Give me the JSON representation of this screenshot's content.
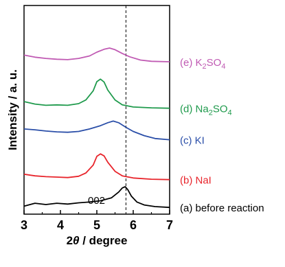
{
  "chart_data": {
    "type": "line",
    "title": "",
    "xlabel_prefix": "2",
    "xlabel_symbol": "θ",
    "xlabel_suffix": " / degree",
    "ylabel": "Intensity / a. u.",
    "xlim": [
      3,
      7
    ],
    "x_ticks": [
      "3",
      "4",
      "5",
      "6",
      "7"
    ],
    "y_ticks_shown": false,
    "reference_line_x": 5.8,
    "peak_annotation": "002",
    "series": [
      {
        "name": "(a) before reaction",
        "label_parts": [
          {
            "t": "(a) before reaction",
            "sub": false
          }
        ],
        "color": "#000000",
        "offset": 0,
        "points": [
          [
            3.0,
            0.6
          ],
          [
            3.3,
            1.3
          ],
          [
            3.6,
            1.0
          ],
          [
            3.9,
            1.3
          ],
          [
            4.2,
            1.1
          ],
          [
            4.5,
            1.4
          ],
          [
            4.8,
            1.6
          ],
          [
            5.1,
            1.9
          ],
          [
            5.4,
            2.6
          ],
          [
            5.6,
            4.0
          ],
          [
            5.7,
            5.0
          ],
          [
            5.78,
            5.3
          ],
          [
            5.85,
            4.6
          ],
          [
            5.95,
            3.0
          ],
          [
            6.1,
            1.6
          ],
          [
            6.3,
            0.9
          ],
          [
            6.6,
            0.5
          ],
          [
            7.0,
            0.3
          ]
        ]
      },
      {
        "name": "(b) NaI",
        "label_parts": [
          {
            "t": "(b) NaI",
            "sub": false
          }
        ],
        "color": "#e8242b",
        "offset": 7,
        "points": [
          [
            3.0,
            1.3
          ],
          [
            3.3,
            0.9
          ],
          [
            3.6,
            0.7
          ],
          [
            3.9,
            0.6
          ],
          [
            4.2,
            0.5
          ],
          [
            4.5,
            0.8
          ],
          [
            4.7,
            1.6
          ],
          [
            4.9,
            3.5
          ],
          [
            5.0,
            5.6
          ],
          [
            5.1,
            6.2
          ],
          [
            5.2,
            5.7
          ],
          [
            5.3,
            4.2
          ],
          [
            5.5,
            2.0
          ],
          [
            5.7,
            0.9
          ],
          [
            6.0,
            0.4
          ],
          [
            6.5,
            0.1
          ],
          [
            7.0,
            0.0
          ]
        ]
      },
      {
        "name": "(c) KI",
        "label_parts": [
          {
            "t": "(c) KI",
            "sub": false
          }
        ],
        "color": "#2a4ea8",
        "offset": 16,
        "points": [
          [
            3.0,
            3.2
          ],
          [
            3.3,
            3.0
          ],
          [
            3.6,
            2.7
          ],
          [
            3.9,
            2.5
          ],
          [
            4.2,
            2.4
          ],
          [
            4.5,
            2.6
          ],
          [
            4.8,
            3.2
          ],
          [
            5.1,
            4.0
          ],
          [
            5.3,
            4.7
          ],
          [
            5.45,
            5.1
          ],
          [
            5.6,
            4.7
          ],
          [
            5.8,
            3.6
          ],
          [
            6.0,
            2.6
          ],
          [
            6.3,
            1.6
          ],
          [
            6.6,
            0.9
          ],
          [
            7.0,
            0.6
          ]
        ]
      },
      {
        "name": "(d) Na2SO4",
        "label_parts": [
          {
            "t": "(d) Na",
            "sub": false
          },
          {
            "t": "2",
            "sub": true
          },
          {
            "t": "SO",
            "sub": false
          },
          {
            "t": "4",
            "sub": true
          }
        ],
        "color": "#1f9a4c",
        "offset": 24,
        "points": [
          [
            3.0,
            1.8
          ],
          [
            3.3,
            1.2
          ],
          [
            3.6,
            0.9
          ],
          [
            3.9,
            1.0
          ],
          [
            4.2,
            0.9
          ],
          [
            4.5,
            1.3
          ],
          [
            4.7,
            2.2
          ],
          [
            4.9,
            4.4
          ],
          [
            5.0,
            6.6
          ],
          [
            5.1,
            7.2
          ],
          [
            5.2,
            6.5
          ],
          [
            5.3,
            4.6
          ],
          [
            5.5,
            2.2
          ],
          [
            5.7,
            1.0
          ],
          [
            6.0,
            0.5
          ],
          [
            6.5,
            0.3
          ],
          [
            7.0,
            0.2
          ]
        ]
      },
      {
        "name": "(e) K2SO4",
        "label_parts": [
          {
            "t": "(e) K",
            "sub": false
          },
          {
            "t": "2",
            "sub": true
          },
          {
            "t": "SO",
            "sub": false
          },
          {
            "t": "4",
            "sub": true
          }
        ],
        "color": "#c05ab3",
        "offset": 35,
        "points": [
          [
            3.0,
            2.0
          ],
          [
            3.3,
            1.5
          ],
          [
            3.6,
            1.2
          ],
          [
            3.9,
            1.0
          ],
          [
            4.2,
            0.9
          ],
          [
            4.5,
            1.2
          ],
          [
            4.8,
            1.8
          ],
          [
            5.0,
            2.7
          ],
          [
            5.2,
            3.4
          ],
          [
            5.35,
            3.7
          ],
          [
            5.5,
            3.3
          ],
          [
            5.7,
            2.4
          ],
          [
            5.9,
            1.6
          ],
          [
            6.2,
            0.8
          ],
          [
            6.5,
            0.5
          ],
          [
            7.0,
            0.4
          ]
        ]
      }
    ]
  }
}
